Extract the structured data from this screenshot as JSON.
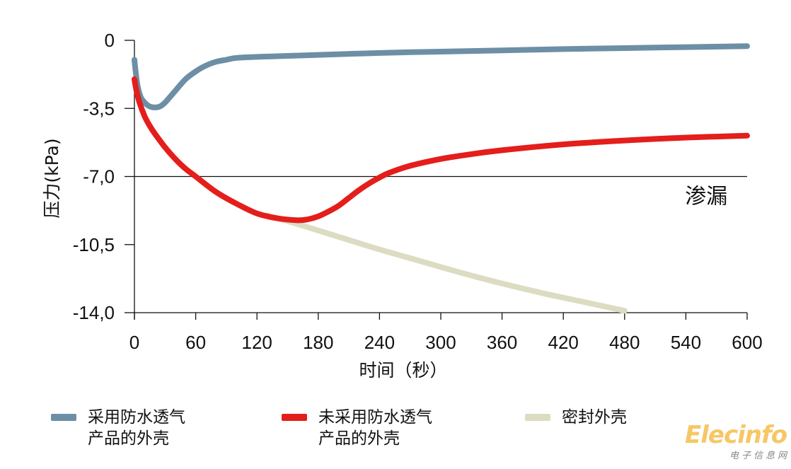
{
  "chart_data": {
    "type": "line",
    "title": "",
    "xlabel": "时间（秒）",
    "ylabel": "压力(kPa)",
    "xlim": [
      0,
      600
    ],
    "ylim": [
      -14,
      0
    ],
    "x_ticks": [
      0,
      60,
      120,
      180,
      240,
      300,
      360,
      420,
      480,
      540,
      600
    ],
    "x_tick_labels": [
      "0",
      "60",
      "120",
      "180",
      "240",
      "300",
      "360",
      "420",
      "480",
      "540",
      "600"
    ],
    "y_ticks": [
      0,
      -3.5,
      -7,
      -10.5,
      -14
    ],
    "y_tick_labels": [
      "0",
      "-3,5",
      "-7,0",
      "-10,5",
      "-14,0"
    ],
    "reference_line": {
      "y": -7,
      "label": "渗漏"
    },
    "legend_position": "bottom",
    "grid": false,
    "series": [
      {
        "name_lines": [
          "采用防水透气",
          "产品的外壳"
        ],
        "color": "#6d8fa5",
        "x": [
          0,
          1,
          3,
          6,
          10,
          15,
          20,
          25,
          30,
          35,
          40,
          50,
          60,
          70,
          80,
          90,
          100,
          120,
          150,
          180,
          240,
          300,
          360,
          420,
          480,
          540,
          600
        ],
        "y": [
          -1.0,
          -1.5,
          -2.3,
          -2.9,
          -3.2,
          -3.4,
          -3.45,
          -3.4,
          -3.2,
          -2.9,
          -2.6,
          -2.0,
          -1.6,
          -1.3,
          -1.1,
          -1.0,
          -0.9,
          -0.85,
          -0.8,
          -0.75,
          -0.65,
          -0.58,
          -0.52,
          -0.45,
          -0.4,
          -0.35,
          -0.3
        ]
      },
      {
        "name_lines": [
          "未采用防水透气",
          "产品的外壳"
        ],
        "color": "#e41e1b",
        "x": [
          0,
          2,
          5,
          10,
          15,
          20,
          30,
          40,
          50,
          60,
          80,
          100,
          120,
          140,
          160,
          170,
          180,
          190,
          200,
          210,
          220,
          230,
          240,
          250,
          270,
          300,
          330,
          360,
          420,
          480,
          540,
          600
        ],
        "y": [
          -2.0,
          -2.6,
          -3.2,
          -3.9,
          -4.4,
          -4.8,
          -5.5,
          -6.1,
          -6.6,
          -7.0,
          -7.8,
          -8.4,
          -8.9,
          -9.15,
          -9.25,
          -9.2,
          -9.05,
          -8.8,
          -8.5,
          -8.1,
          -7.7,
          -7.35,
          -7.05,
          -6.8,
          -6.45,
          -6.1,
          -5.85,
          -5.65,
          -5.35,
          -5.15,
          -5.0,
          -4.9
        ]
      },
      {
        "name_lines": [
          "密封外壳"
        ],
        "color": "#dcdcc3",
        "x": [
          130,
          160,
          200,
          240,
          280,
          320,
          360,
          400,
          440,
          480
        ],
        "y": [
          -9.0,
          -9.45,
          -10.1,
          -10.75,
          -11.35,
          -11.95,
          -12.5,
          -13.0,
          -13.45,
          -13.9
        ]
      }
    ]
  },
  "watermark": {
    "main": "Elecinfo",
    "sub": "电子信息网"
  }
}
